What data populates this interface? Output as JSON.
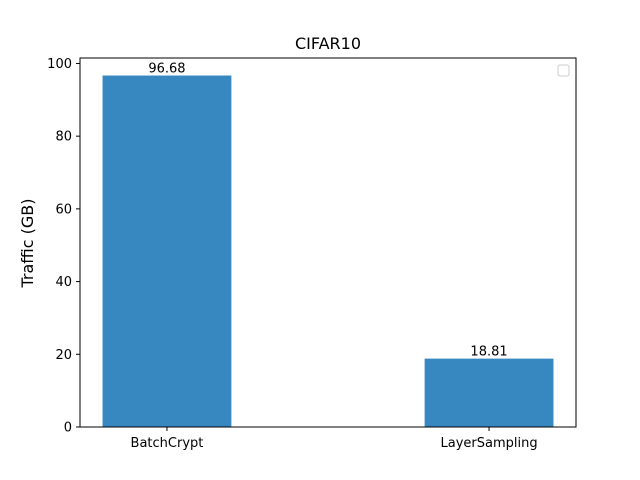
{
  "chart_data": {
    "type": "bar",
    "title": "CIFAR10",
    "xlabel": "",
    "ylabel": "Traffic (GB)",
    "categories": [
      "BatchCrypt",
      "LayerSampling"
    ],
    "values": [
      96.68,
      18.81
    ],
    "value_labels": [
      "96.68",
      "18.81"
    ],
    "ylim": [
      0,
      101.5
    ],
    "yticks": [
      0,
      20,
      40,
      60,
      80,
      100
    ],
    "grid": false,
    "legend": {
      "placement": "top-right",
      "entries": []
    },
    "colors": {
      "bar": "#3787c0"
    }
  }
}
